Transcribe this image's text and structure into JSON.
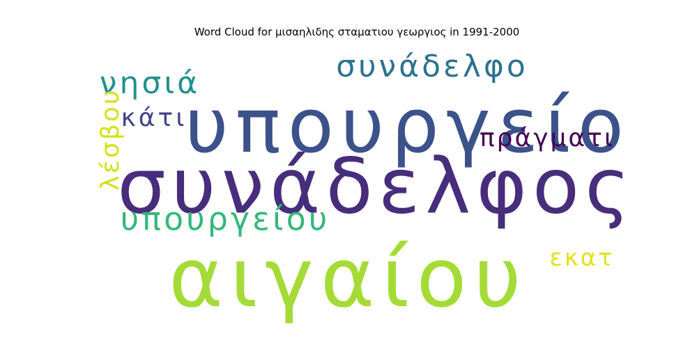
{
  "title": "Word Cloud for μισαηλιδης σταματιου γεωργιος in 1991-2000",
  "chart_data": {
    "type": "wordcloud",
    "title": "Word Cloud for μισαηλιδης σταματιου γεωργιος in 1991-2000",
    "words": [
      {
        "text": "αιγαίου",
        "color": "#a5db36"
      },
      {
        "text": "συνάδελφος",
        "color": "#472d7b"
      },
      {
        "text": "υπουργείο",
        "color": "#3b528b"
      },
      {
        "text": "υπουργείου",
        "color": "#35b779"
      },
      {
        "text": "συνάδελφο",
        "color": "#2c728e"
      },
      {
        "text": "νησιά",
        "color": "#21918c"
      },
      {
        "text": "πράγματι",
        "color": "#440154"
      },
      {
        "text": "κάτι",
        "color": "#414487"
      },
      {
        "text": "λέσβου",
        "color": "#d2e21b"
      },
      {
        "text": "εκατ",
        "color": "#e0e219"
      }
    ]
  }
}
